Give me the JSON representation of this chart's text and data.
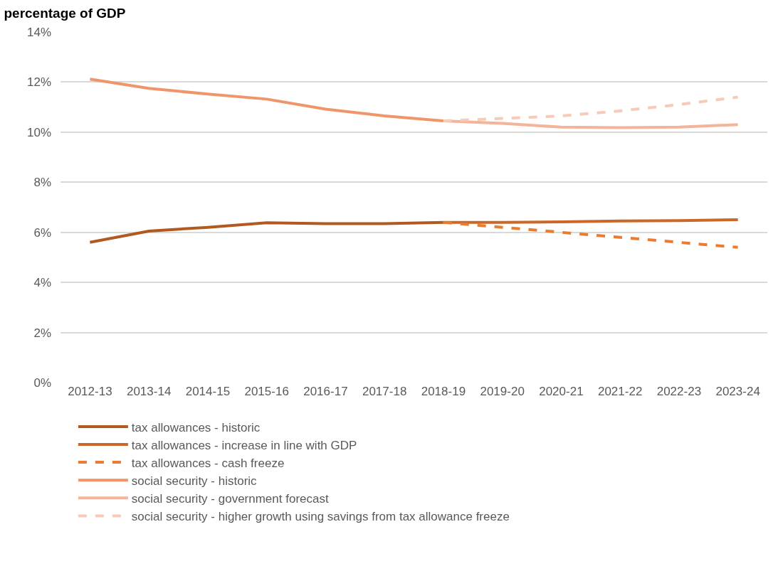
{
  "chart_data": {
    "type": "line",
    "title": "percentage of GDP",
    "categories": [
      "2012-13",
      "2013-14",
      "2014-15",
      "2015-16",
      "2016-17",
      "2017-18",
      "2018-19",
      "2019-20",
      "2020-21",
      "2021-22",
      "2022-23",
      "2023-24"
    ],
    "series": [
      {
        "name": "tax allowances - historic",
        "color": "#b05a1f",
        "values": [
          5.6,
          6.05,
          6.2,
          6.38,
          6.35,
          6.35,
          6.4,
          null,
          null,
          null,
          null,
          null
        ]
      },
      {
        "name": "tax allowances - increase in line with GDP",
        "color": "#cc672a",
        "values": [
          null,
          null,
          null,
          null,
          null,
          null,
          6.4,
          6.4,
          6.42,
          6.45,
          6.47,
          6.5
        ]
      },
      {
        "name": "tax allowances - cash freeze",
        "color": "#e87c30",
        "line_style": "dashed",
        "values": [
          null,
          null,
          null,
          null,
          null,
          null,
          6.4,
          6.2,
          6.0,
          5.8,
          5.6,
          5.4
        ]
      },
      {
        "name": "social security - historic",
        "color": "#f0956a",
        "values": [
          12.12,
          11.75,
          11.52,
          11.32,
          10.92,
          10.65,
          10.45,
          null,
          null,
          null,
          null,
          null
        ]
      },
      {
        "name": "social security - government forecast",
        "color": "#f4b49a",
        "values": [
          null,
          null,
          null,
          null,
          null,
          null,
          10.45,
          10.35,
          10.2,
          10.18,
          10.2,
          10.3
        ]
      },
      {
        "name": "social security - higher growth using savings from tax allowance freeze",
        "color": "#f6cbb8",
        "line_style": "dashed",
        "values": [
          null,
          null,
          null,
          null,
          null,
          null,
          10.45,
          10.55,
          10.65,
          10.85,
          11.1,
          11.4
        ]
      }
    ],
    "ylim": [
      0,
      14
    ],
    "yticks": [
      {
        "value": 0,
        "label": "0%"
      },
      {
        "value": 2,
        "label": "2%"
      },
      {
        "value": 4,
        "label": "4%"
      },
      {
        "value": 6,
        "label": "6%"
      },
      {
        "value": 8,
        "label": "8%"
      },
      {
        "value": 10,
        "label": "10%"
      },
      {
        "value": 12,
        "label": "12%"
      },
      {
        "value": 14,
        "label": "14%"
      }
    ],
    "grid": "y",
    "legend": "bottom",
    "marker": "none",
    "line_style": "solid"
  }
}
